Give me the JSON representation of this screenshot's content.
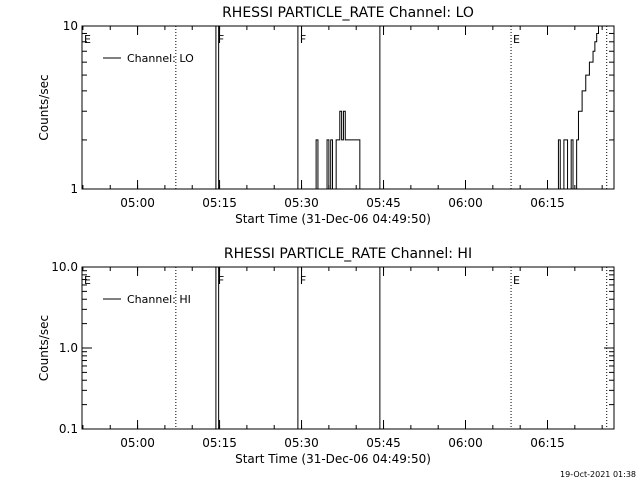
{
  "chart_data": [
    {
      "type": "line",
      "title": "RHESSI PARTICLE_RATE Channel: LO",
      "xlabel": "Start Time (31-Dec-06 04:49:50)",
      "ylabel": "Counts/sec",
      "yscale": "log",
      "ylim": [
        1,
        10
      ],
      "xlim": [
        "04:49:50",
        "06:27:10"
      ],
      "xticks": [
        "05:00",
        "05:15",
        "05:30",
        "05:45",
        "06:00",
        "06:15"
      ],
      "yticks": [
        "1",
        "10"
      ],
      "legend": {
        "label": "Channel: LO",
        "position": "top-left"
      },
      "grid": false,
      "markers": [
        {
          "label": "E",
          "x": "04:49:50",
          "style": "none"
        },
        {
          "label": "",
          "x": "05:07:00",
          "style": "dotted"
        },
        {
          "label": "F",
          "x": "05:14:20",
          "style": "solid"
        },
        {
          "label": "",
          "x": "05:14:50",
          "style": "solid"
        },
        {
          "label": "F",
          "x": "05:29:20",
          "style": "solid"
        },
        {
          "label": "",
          "x": "05:44:20",
          "style": "solid"
        },
        {
          "label": "E",
          "x": "06:08:20",
          "style": "dotted"
        },
        {
          "label": "",
          "x": "06:25:50",
          "style": "dotted"
        }
      ],
      "series": [
        {
          "x": [
            "05:32:20",
            "05:32:40",
            "05:33:00",
            "05:33:20",
            "05:33:40",
            "05:34:00",
            "05:34:20",
            "05:34:40",
            "05:35:00",
            "05:35:20",
            "05:35:40",
            "05:36:00",
            "05:36:20",
            "05:36:40",
            "05:37:00",
            "05:37:20",
            "05:37:40",
            "05:38:00",
            "05:38:20",
            "05:38:40",
            "05:39:00",
            "05:39:20",
            "05:39:40",
            "05:40:00",
            "05:40:20",
            "05:40:40",
            "05:41:00",
            "05:41:20",
            "06:16:40",
            "06:17:00",
            "06:17:20",
            "06:17:40",
            "06:18:00",
            "06:18:20",
            "06:18:40",
            "06:19:00",
            "06:19:20",
            "06:19:40",
            "06:20:00",
            "06:20:20",
            "06:20:40",
            "06:21:00",
            "06:21:20",
            "06:21:40",
            "06:22:00",
            "06:22:20",
            "06:22:40",
            "06:23:00",
            "06:23:20",
            "06:23:40",
            "06:24:00",
            "06:24:20",
            "06:24:40",
            "06:25:00",
            "06:25:20",
            "06:25:40"
          ],
          "y": [
            1,
            2,
            1,
            1,
            1,
            1,
            1,
            2,
            1,
            2,
            1,
            1,
            2,
            2,
            3,
            2,
            3,
            2,
            2,
            2,
            2,
            2,
            2,
            2,
            2,
            1,
            1,
            1,
            1,
            2,
            1,
            1,
            2,
            2,
            1,
            1,
            2,
            1,
            1,
            2,
            3,
            3,
            4,
            4,
            5,
            5,
            6,
            6,
            7,
            8,
            9,
            10,
            10,
            10,
            10,
            10
          ]
        }
      ]
    },
    {
      "type": "line",
      "title": "RHESSI PARTICLE_RATE Channel: HI",
      "xlabel": "Start Time (31-Dec-06 04:49:50)",
      "ylabel": "Counts/sec",
      "yscale": "log",
      "ylim": [
        0.1,
        10
      ],
      "xlim": [
        "04:49:50",
        "06:27:10"
      ],
      "xticks": [
        "05:00",
        "05:15",
        "05:30",
        "05:45",
        "06:00",
        "06:15"
      ],
      "yticks": [
        "0.1",
        "1.0",
        "10.0"
      ],
      "legend": {
        "label": "Channel: HI",
        "position": "top-left"
      },
      "grid": false,
      "markers": [
        {
          "label": "E",
          "x": "04:49:50",
          "style": "none"
        },
        {
          "label": "",
          "x": "05:07:00",
          "style": "dotted"
        },
        {
          "label": "F",
          "x": "05:14:20",
          "style": "solid"
        },
        {
          "label": "",
          "x": "05:14:50",
          "style": "solid"
        },
        {
          "label": "F",
          "x": "05:29:20",
          "style": "solid"
        },
        {
          "label": "",
          "x": "05:44:20",
          "style": "solid"
        },
        {
          "label": "E",
          "x": "06:08:20",
          "style": "dotted"
        },
        {
          "label": "",
          "x": "06:25:50",
          "style": "dotted"
        }
      ],
      "series": [
        {
          "x": [],
          "y": []
        }
      ]
    }
  ],
  "footer": {
    "stamp": "19-Oct-2021 01:38"
  }
}
